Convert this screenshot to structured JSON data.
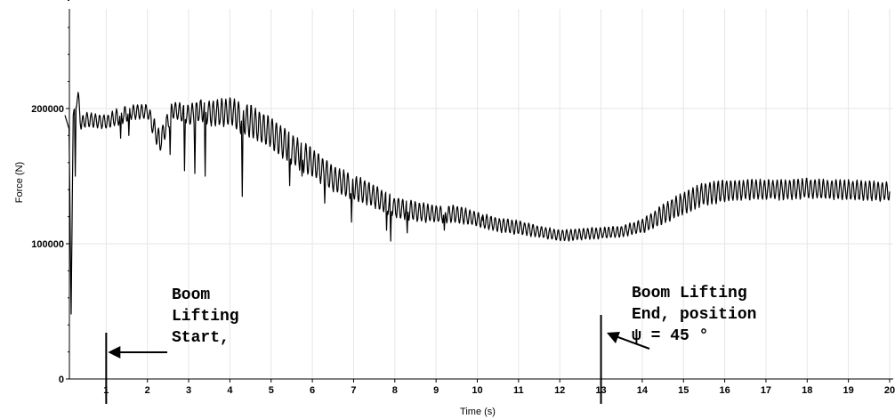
{
  "chart_data": {
    "type": "line",
    "title": "",
    "xlabel": "Time (s)",
    "ylabel": "Force (N)",
    "xlim": [
      0,
      20
    ],
    "ylim": [
      0,
      290000
    ],
    "x_ticks": [
      1,
      2,
      3,
      4,
      5,
      6,
      7,
      8,
      9,
      10,
      11,
      12,
      13,
      14,
      15,
      16,
      17,
      18,
      19,
      20
    ],
    "x_tick_labels": [
      "1",
      "2",
      "3",
      "4",
      "5",
      "6",
      "7",
      "8",
      "9",
      "10",
      "11",
      "12",
      "13",
      "14",
      "15",
      "16",
      "17",
      "18",
      "19",
      "20"
    ],
    "y_ticks": [
      0,
      100000,
      200000
    ],
    "y_tick_labels": [
      "0",
      "100000",
      "200000"
    ],
    "grid": true,
    "series": [
      {
        "name": "",
        "color": "#000000",
        "x": [
          0.0,
          0.1,
          0.15,
          0.2,
          0.3,
          0.4,
          0.5,
          0.7,
          1.0,
          1.3,
          1.6,
          2.0,
          2.3,
          2.6,
          3.0,
          3.3,
          3.6,
          4.0,
          4.5,
          5.0,
          5.5,
          6.0,
          6.5,
          7.0,
          7.5,
          8.0,
          8.5,
          9.0,
          9.5,
          10.0,
          10.5,
          11.0,
          11.5,
          12.0,
          12.5,
          13.0,
          13.5,
          14.0,
          14.5,
          15.0,
          15.5,
          16.0,
          16.5,
          17.0,
          17.5,
          18.0,
          18.5,
          19.0,
          19.5,
          20.0
        ],
        "y": [
          195000,
          185000,
          48000,
          195000,
          210000,
          188000,
          192000,
          191000,
          190000,
          194000,
          197000,
          198000,
          175000,
          199000,
          195000,
          199000,
          196000,
          198000,
          190000,
          182000,
          170000,
          160000,
          148000,
          142000,
          135000,
          127000,
          124000,
          122000,
          122000,
          118000,
          114000,
          112000,
          109000,
          106000,
          107000,
          108000,
          109000,
          113000,
          122000,
          130000,
          137000,
          139000,
          140000,
          140000,
          140000,
          141000,
          140000,
          140000,
          139000,
          139000
        ],
        "amplitude": [
          0,
          0,
          0,
          0,
          8000,
          6000,
          5000,
          5000,
          5000,
          6000,
          5000,
          5000,
          8000,
          6000,
          7000,
          8000,
          9000,
          10000,
          12000,
          11000,
          11000,
          10000,
          9000,
          9000,
          8000,
          7000,
          7000,
          6000,
          6000,
          5000,
          5000,
          5000,
          4000,
          4000,
          4000,
          4000,
          4000,
          5000,
          7000,
          8000,
          8000,
          8000,
          7000,
          7000,
          7000,
          7000,
          7000,
          7000,
          7000,
          7000
        ],
        "dips": [
          [
            0.25,
            150000
          ],
          [
            1.35,
            178000
          ],
          [
            1.55,
            180000
          ],
          [
            2.55,
            166000
          ],
          [
            2.9,
            154000
          ],
          [
            3.15,
            152000
          ],
          [
            3.4,
            150000
          ],
          [
            4.3,
            135000
          ],
          [
            5.45,
            143000
          ],
          [
            5.75,
            150000
          ],
          [
            6.3,
            130000
          ],
          [
            6.95,
            116000
          ],
          [
            7.8,
            110000
          ],
          [
            7.9,
            102000
          ],
          [
            8.3,
            108000
          ],
          [
            9.2,
            110000
          ],
          [
            10.1,
            142000
          ],
          [
            13.05,
            108000
          ]
        ]
      }
    ],
    "annotations": [
      {
        "lines": [
          "Boom",
          "Lifting",
          "Start,"
        ],
        "x": 1.0
      },
      {
        "lines": [
          "Boom Lifting",
          "End, position",
          "ψ = 45 °"
        ],
        "x": 13.0
      }
    ]
  }
}
